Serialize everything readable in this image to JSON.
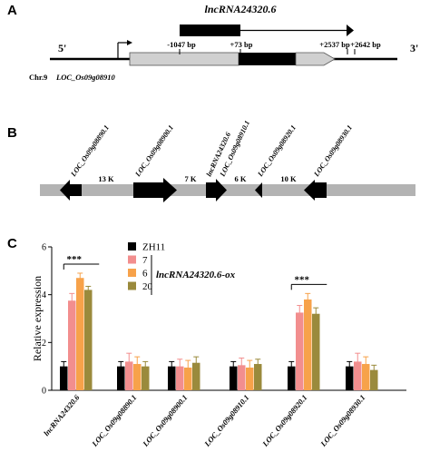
{
  "panels": {
    "a": {
      "letter": "A"
    },
    "b": {
      "letter": "B"
    },
    "c": {
      "letter": "C"
    }
  },
  "panel_a": {
    "lncrna_label": "lncRNA24320.6",
    "five_prime": "5'",
    "three_prime": "3'",
    "positions": [
      "-1047 bp",
      "+73 bp",
      "+2537 bp",
      "+2642 bp"
    ],
    "chromosome": "Chr.9",
    "gene": "LOC_Os09g08910"
  },
  "panel_b": {
    "genes": [
      "LOC_Os09g08890.1",
      "LOC_Os09g08900.1",
      "lncRNA24320.6",
      "LOC_Os09g08910.1",
      "LOC_Os09g08920.1",
      "LOC_Os09g08930.1"
    ],
    "distances": [
      "13 K",
      "7 K",
      "6 K",
      "10 K"
    ]
  },
  "chart_data": {
    "type": "bar",
    "ylabel": "Relative expression",
    "ylim": [
      0,
      6
    ],
    "yticks": [
      "0",
      "2",
      "4",
      "6"
    ],
    "categories": [
      "lncRNA24320.6",
      "LOC_Os09g08890.1",
      "LOC_Os09g08900.1",
      "LOC_Os09g08910.1",
      "LOC_Os09g08920.1",
      "LOC_Os09g08930.1"
    ],
    "legend_group_label": "lncRNA24320.6-ox",
    "series": [
      {
        "name": "ZH11",
        "color": "#000000",
        "values": [
          1.0,
          1.0,
          1.0,
          1.0,
          1.0,
          1.0
        ],
        "errors": [
          0.2,
          0.2,
          0.2,
          0.2,
          0.2,
          0.2
        ]
      },
      {
        "name": "7",
        "color": "#f28e8e",
        "values": [
          3.75,
          1.2,
          1.0,
          1.05,
          3.25,
          1.2
        ],
        "errors": [
          0.3,
          0.35,
          0.3,
          0.3,
          0.3,
          0.35
        ]
      },
      {
        "name": "6",
        "color": "#f7a24a",
        "values": [
          4.7,
          1.1,
          0.95,
          0.95,
          3.8,
          1.1
        ],
        "errors": [
          0.2,
          0.3,
          0.3,
          0.3,
          0.25,
          0.3
        ]
      },
      {
        "name": "20",
        "color": "#9a8a3c",
        "values": [
          4.2,
          1.0,
          1.15,
          1.1,
          3.2,
          0.85
        ],
        "errors": [
          0.15,
          0.2,
          0.25,
          0.2,
          0.25,
          0.2
        ]
      }
    ],
    "significance": [
      {
        "category": "lncRNA24320.6",
        "label": "***"
      },
      {
        "category": "LOC_Os09g08920.1",
        "label": "***"
      }
    ],
    "legend_position": "top-center"
  }
}
